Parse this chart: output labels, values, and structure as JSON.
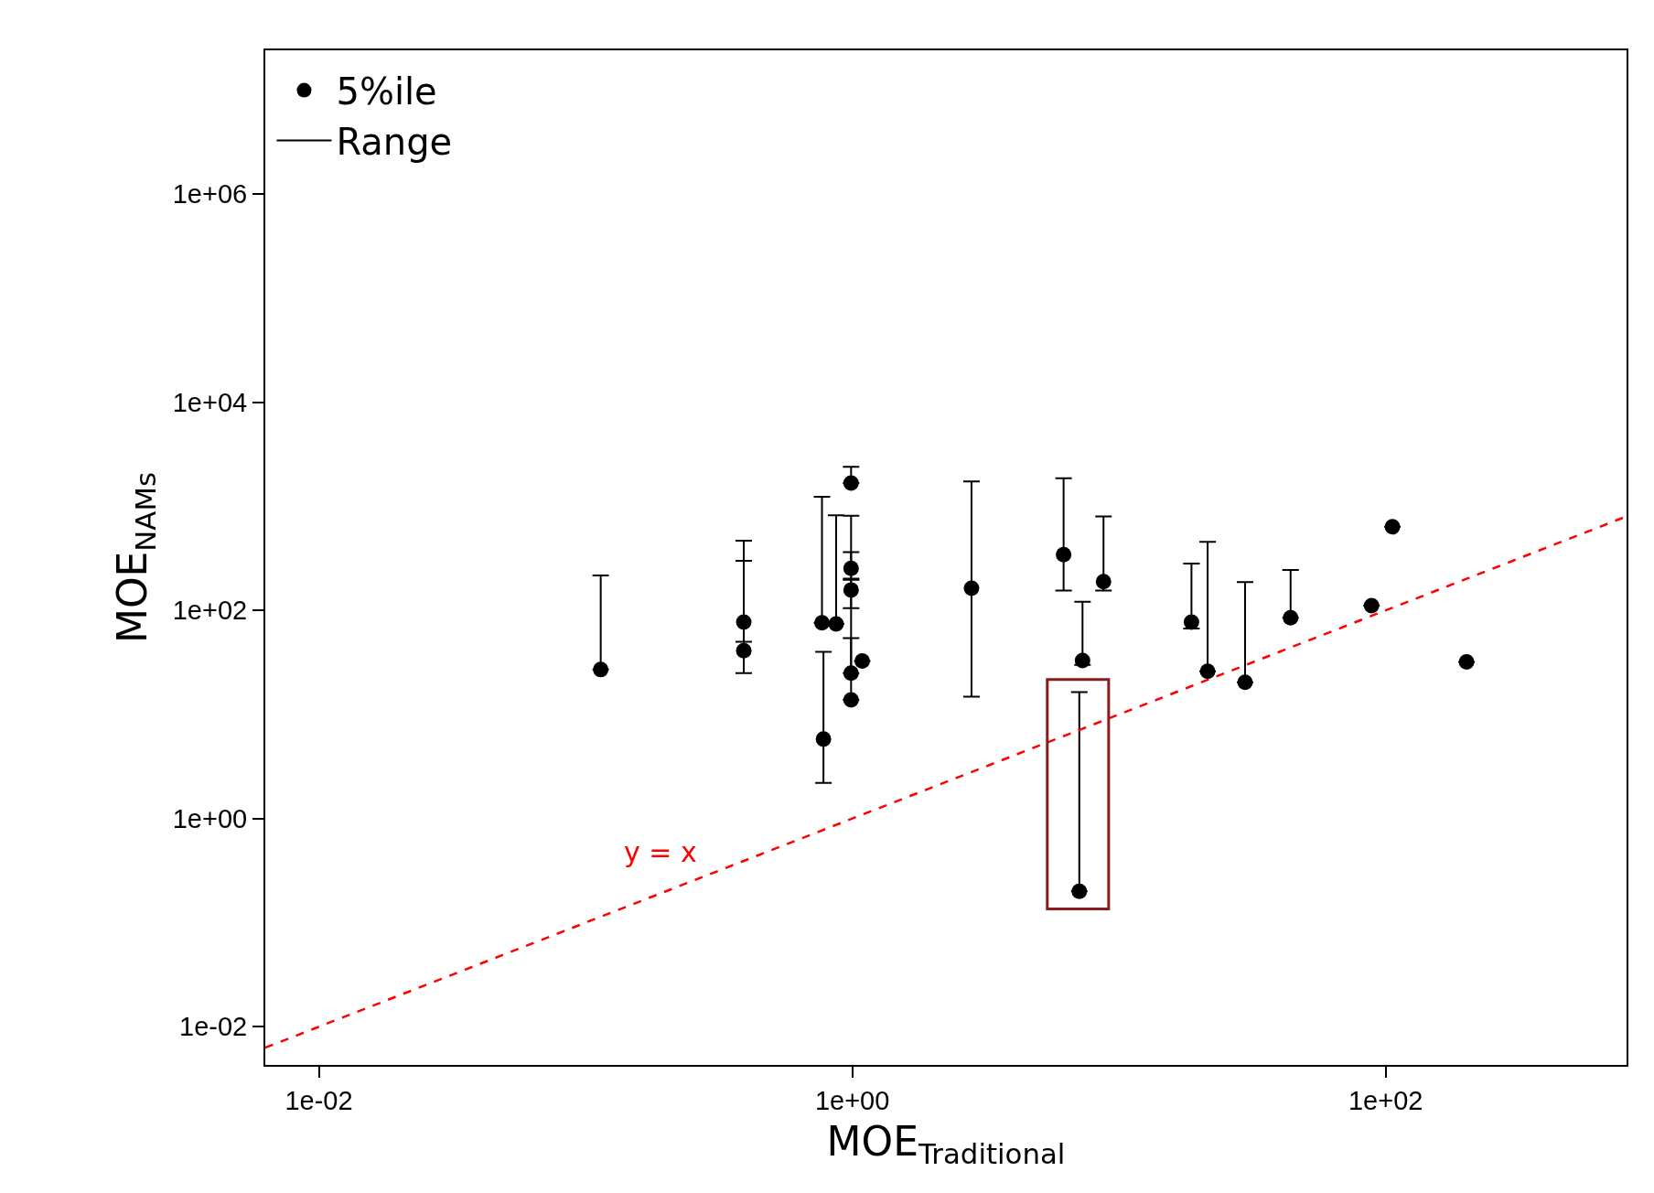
{
  "chart_data": {
    "type": "scatter",
    "xlabel": "MOE$_{Traditional}$",
    "ylabel": "MOE$_{NAMs}$",
    "log": "xy",
    "grid": false,
    "legend": "top left",
    "marker": "circle",
    "xlim": [
      0.0063,
      800
    ],
    "ylim": [
      0.0043,
      24000000
    ],
    "xticks": [
      {
        "value": 0.01,
        "label": "1e-02"
      },
      {
        "value": 1,
        "label": "1e+00"
      },
      {
        "value": 100,
        "label": "1e+02"
      }
    ],
    "yticks": [
      {
        "value": 0.01,
        "label": "1e-02"
      },
      {
        "value": 1,
        "label": "1e+00"
      },
      {
        "value": 100,
        "label": "1e+02"
      },
      {
        "value": 10000,
        "label": "1e+04"
      },
      {
        "value": 1000000,
        "label": "1e+06"
      }
    ],
    "annotations": [
      "y = x",
      "Range"
    ],
    "series": [
      {
        "name": "5%ile",
        "color": "#000000",
        "x": [
          0.114,
          0.392,
          0.392,
          0.77,
          0.78,
          0.87,
          0.99,
          0.99,
          0.99,
          0.99,
          0.99,
          1.09,
          2.8,
          6.2,
          8.75,
          7.3,
          7.1,
          18.7,
          21.5,
          29.7,
          44,
          88.5,
          106,
          201
        ],
        "values": [
          27,
          77,
          41,
          76,
          5.8,
          74,
          1670,
          253,
          157,
          25,
          13.8,
          32.6,
          163,
          343,
          189,
          33,
          0.2,
          77,
          26,
          20.4,
          85,
          111,
          635,
          32
        ],
        "errors": [
          [
            27,
            216
          ],
          [
            50,
            300
          ],
          [
            25,
            468
          ],
          [
            76,
            1231
          ],
          [
            2.2,
            40
          ],
          [
            74,
            820
          ],
          [
            1670,
            2390
          ],
          [
            202,
            362
          ],
          [
            105,
            811
          ],
          [
            25,
            197
          ],
          [
            13.8,
            54
          ],
          null,
          [
            14.8,
            1730
          ],
          [
            155,
            1860
          ],
          [
            155,
            800
          ],
          [
            30,
            121
          ],
          [
            0.2,
            16.4
          ],
          [
            67,
            281
          ],
          [
            26,
            455
          ],
          [
            20.4,
            187
          ],
          [
            85,
            245
          ],
          null,
          null,
          null
        ]
      },
      {
        "type": "line",
        "color": "#ff0000",
        "line_style": "dashed",
        "marker": "none",
        "x": [
          0.0063,
          800
        ],
        "values": [
          0.0063,
          800
        ]
      }
    ]
  }
}
